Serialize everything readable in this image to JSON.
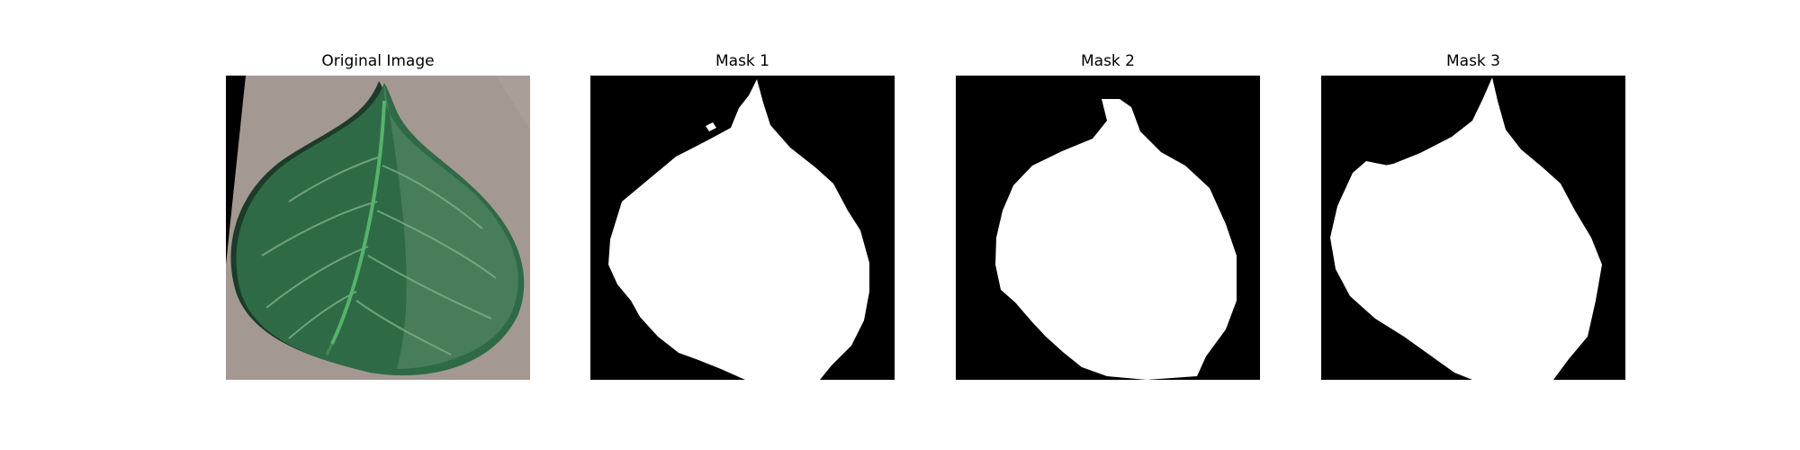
{
  "figure": {
    "panels": [
      {
        "title": "Original Image",
        "kind": "leaf-photo"
      },
      {
        "title": "Mask 1",
        "kind": "mask"
      },
      {
        "title": "Mask 2",
        "kind": "mask"
      },
      {
        "title": "Mask 3",
        "kind": "mask"
      }
    ]
  },
  "colors": {
    "background": "#ffffff",
    "mask_background": "#000000",
    "mask_foreground": "#ffffff",
    "leaf": "#2f6a47",
    "leaf_vein": "#7fb08a",
    "paper": "#a49992"
  }
}
